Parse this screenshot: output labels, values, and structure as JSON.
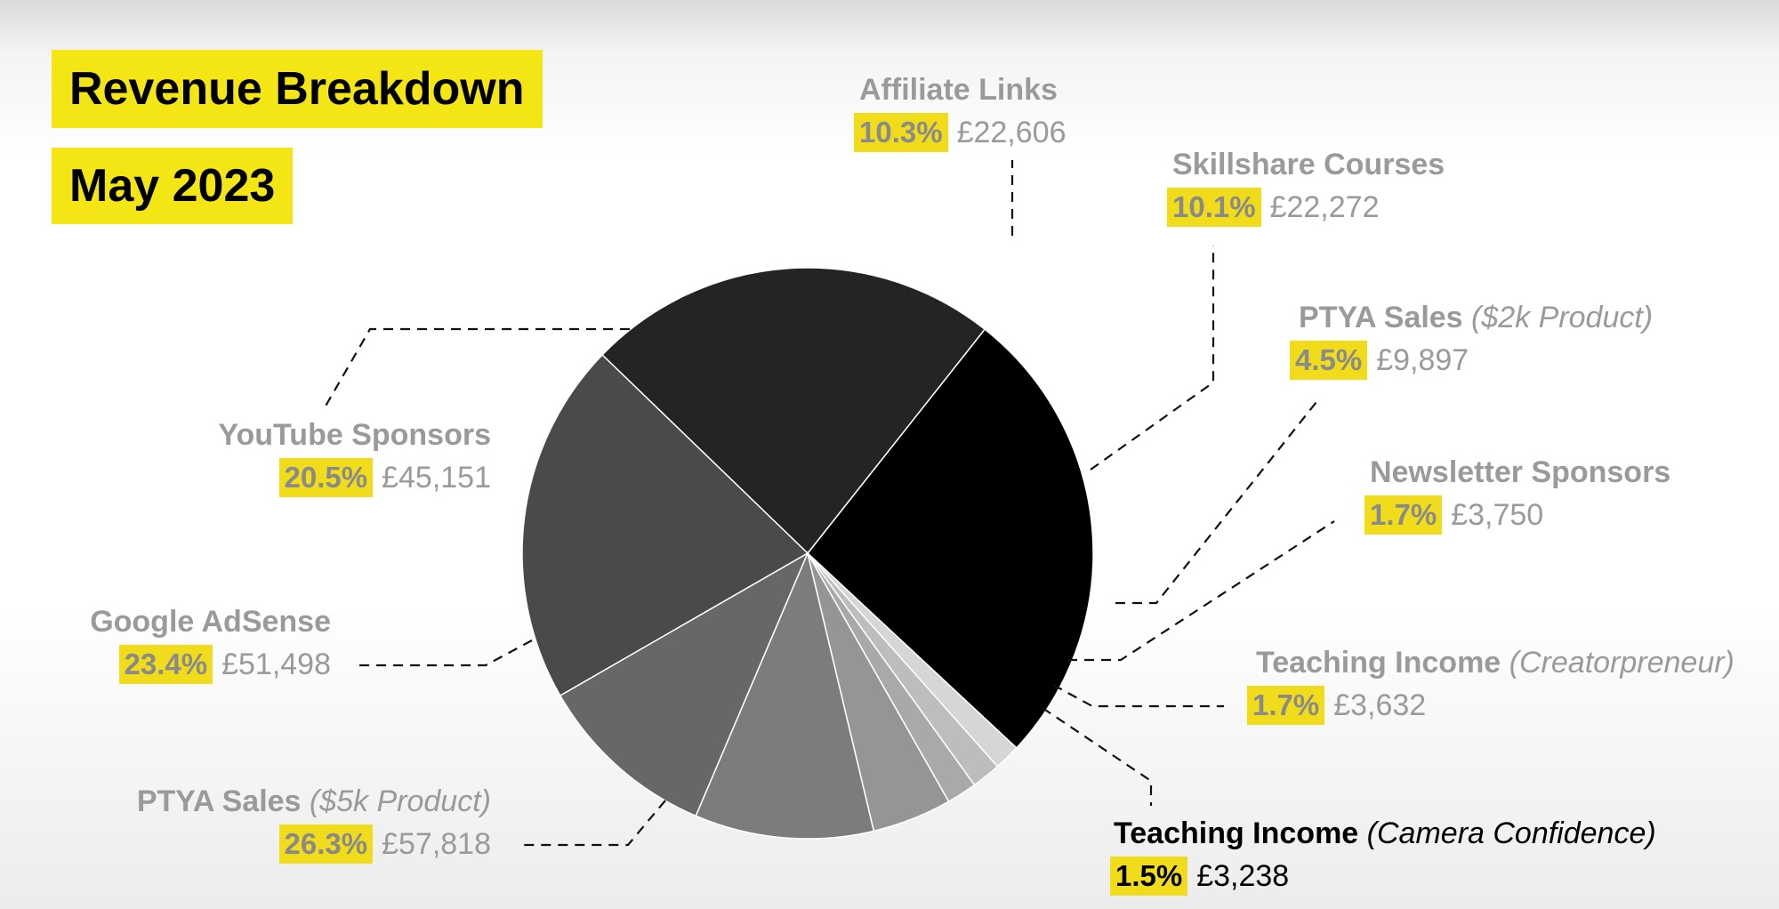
{
  "header": {
    "title": "Revenue Breakdown",
    "subtitle": "May 2023"
  },
  "colors": {
    "highlight": "#f4e515",
    "label_text": "#9a9a9a"
  },
  "chart_data": {
    "type": "pie",
    "title": "Revenue Breakdown",
    "subtitle": "May 2023",
    "currency": "£",
    "slices": [
      {
        "name": "PTYA Sales",
        "note": "($5k Product)",
        "percent": "26.3%",
        "amount": "£57,818",
        "value": 57818,
        "color": "#000000"
      },
      {
        "name": "Google AdSense",
        "note": "",
        "percent": "23.4%",
        "amount": "£51,498",
        "value": 51498,
        "color": "#242424"
      },
      {
        "name": "YouTube Sponsors",
        "note": "",
        "percent": "20.5%",
        "amount": "£45,151",
        "value": 45151,
        "color": "#4a4a4a"
      },
      {
        "name": "Affiliate Links",
        "note": "",
        "percent": "10.3%",
        "amount": "£22,606",
        "value": 22606,
        "color": "#676767"
      },
      {
        "name": "Skillshare Courses",
        "note": "",
        "percent": "10.1%",
        "amount": "£22,272",
        "value": 22272,
        "color": "#7c7c7c"
      },
      {
        "name": "PTYA Sales",
        "note": "($2k Product)",
        "percent": "4.5%",
        "amount": "£9,897",
        "value": 9897,
        "color": "#959595"
      },
      {
        "name": "Newsletter Sponsors",
        "note": "",
        "percent": "1.7%",
        "amount": "£3,750",
        "value": 3750,
        "color": "#a9a9a9"
      },
      {
        "name": "Teaching Income",
        "note": "(Creatorpreneur)",
        "percent": "1.7%",
        "amount": "£3,632",
        "value": 3632,
        "color": "#bdbdbd"
      },
      {
        "name": "Teaching Income",
        "note": "(Camera Confidence)",
        "percent": "1.5%",
        "amount": "£3,238",
        "value": 3238,
        "color": "#d6d6d6"
      }
    ]
  }
}
